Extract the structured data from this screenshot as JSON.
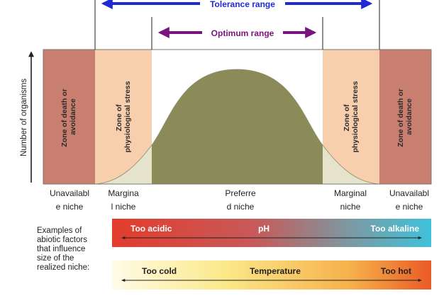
{
  "colors": {
    "tolerance": "#1f2ad6",
    "optimum": "#7b137f",
    "death_zone": "#c97f6f",
    "stress_zone": "#f7cfad",
    "curve_fill": "#8b8b5a",
    "curve_tail": "#e5e3cc"
  },
  "ranges": {
    "tolerance": "Tolerance range",
    "optimum": "Optimum range"
  },
  "axis": {
    "ylabel": "Number of organisms"
  },
  "zones": {
    "death_left": [
      "Zone of death or",
      "avoidance"
    ],
    "stress_left": [
      "Zone of",
      "physiological stress"
    ],
    "stress_right": [
      "Zone of",
      "physiological stress"
    ],
    "death_right": [
      "Zone of death or",
      "avoidance"
    ]
  },
  "niches": {
    "unavailable_left": [
      "Unavailabl",
      "e niche"
    ],
    "marginal_left": [
      "Margina",
      "l niche"
    ],
    "preferred": [
      "Preferre",
      "d niche"
    ],
    "marginal_right": [
      "Marginal",
      "niche"
    ],
    "unavailable_right": [
      "Unavailabl",
      "e niche"
    ]
  },
  "examples_label": [
    "Examples of",
    "abiotic factors",
    "that influence",
    "size of the",
    "realized niche:"
  ],
  "ph_bar": {
    "left": "Too acidic",
    "center": "pH",
    "right": "Too alkaline"
  },
  "temp_bar": {
    "left": "Too cold",
    "center": "Temperature",
    "right": "Too hot"
  }
}
